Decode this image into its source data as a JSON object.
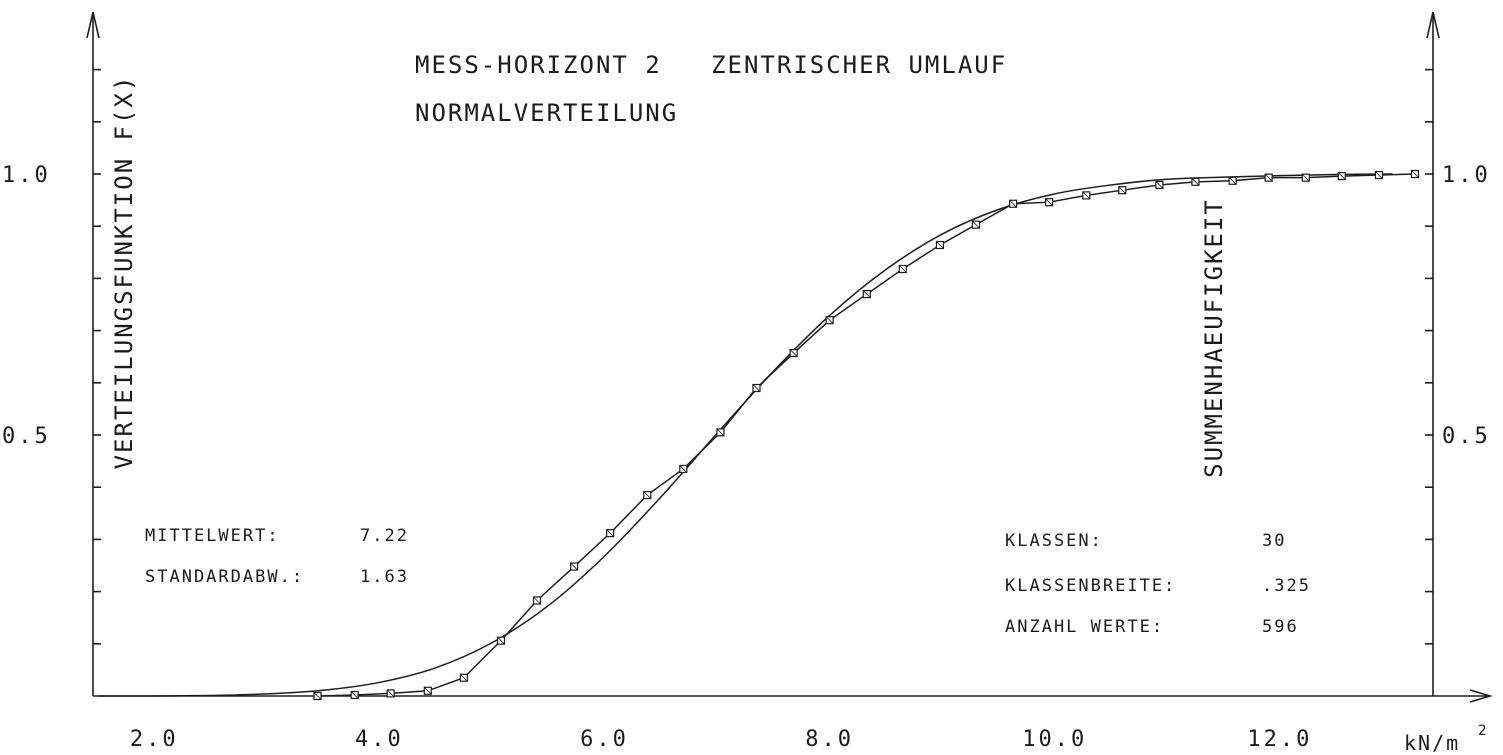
{
  "chart_data": {
    "type": "line",
    "title": "MESS-HORIZONT 2   ZENTRISCHER UMLAUF",
    "subtitle": "NORMALVERTEILUNG",
    "ylabel_left": "VERTEILUNGSFUNKTION F(X)",
    "ylabel_right": "SUMMENHAEUFIGKEIT",
    "xunit": "kN/m",
    "xunit_sup": "2",
    "xlim": [
      1.5,
      14.0
    ],
    "ylim": [
      0.0,
      1.3
    ],
    "x_ticks": [
      {
        "value": 2.0,
        "label": "2.0"
      },
      {
        "value": 4.0,
        "label": "4.0"
      },
      {
        "value": 6.0,
        "label": "6.0"
      },
      {
        "value": 8.0,
        "label": "8.0"
      },
      {
        "value": 10.0,
        "label": "10.0"
      },
      {
        "value": 12.0,
        "label": "12.0"
      }
    ],
    "y_ticks_left": [
      {
        "value": 0.5,
        "label": "0.5"
      },
      {
        "value": 1.0,
        "label": "1.0"
      }
    ],
    "y_ticks_right": [
      {
        "value": 0.5,
        "label": "0.5"
      },
      {
        "value": 1.0,
        "label": "1.0"
      }
    ],
    "y_minor_ticks": [
      0.1,
      0.2,
      0.3,
      0.4,
      0.5,
      0.6,
      0.7,
      0.8,
      0.9,
      1.0,
      1.1,
      1.2
    ],
    "grid": false,
    "stats_left": [
      {
        "label": "MITTELWERT:",
        "value": "7.22"
      },
      {
        "label": "STANDARDABW.:",
        "value": "1.63"
      }
    ],
    "stats_right": [
      {
        "label": "KLASSEN:",
        "value": "30"
      },
      {
        "label": "KLASSENBREITE:",
        "value": ".325"
      },
      {
        "label": "ANZAHL WERTE:",
        "value": "596"
      }
    ],
    "series": [
      {
        "marker": "none",
        "x": [
          1.5,
          2.0,
          2.5,
          3.0,
          3.5,
          4.0,
          4.5,
          5.0,
          5.5,
          6.0,
          6.5,
          7.0,
          7.5,
          8.0,
          8.5,
          9.0,
          9.5,
          10.0,
          10.5,
          11.0,
          11.5,
          12.0,
          12.5,
          13.0
        ],
        "values": [
          0.0,
          0.0,
          0.001,
          0.004,
          0.011,
          0.026,
          0.054,
          0.102,
          0.173,
          0.268,
          0.381,
          0.503,
          0.622,
          0.729,
          0.817,
          0.885,
          0.932,
          0.962,
          0.979,
          0.99,
          0.994,
          0.997,
          0.999,
          1.0
        ]
      },
      {
        "marker": "square",
        "x": [
          3.45,
          3.78,
          4.1,
          4.43,
          4.75,
          5.08,
          5.4,
          5.73,
          6.05,
          6.38,
          6.7,
          7.03,
          7.35,
          7.68,
          8.0,
          8.33,
          8.65,
          8.98,
          9.3,
          9.63,
          9.95,
          10.28,
          10.6,
          10.93,
          11.25,
          11.58,
          11.9,
          12.23,
          12.55,
          12.88,
          13.2
        ],
        "values": [
          0.0,
          0.002,
          0.005,
          0.01,
          0.035,
          0.106,
          0.183,
          0.248,
          0.312,
          0.385,
          0.435,
          0.505,
          0.59,
          0.657,
          0.72,
          0.77,
          0.818,
          0.864,
          0.903,
          0.943,
          0.946,
          0.959,
          0.969,
          0.979,
          0.985,
          0.987,
          0.993,
          0.993,
          0.996,
          0.998,
          1.0
        ]
      }
    ]
  }
}
